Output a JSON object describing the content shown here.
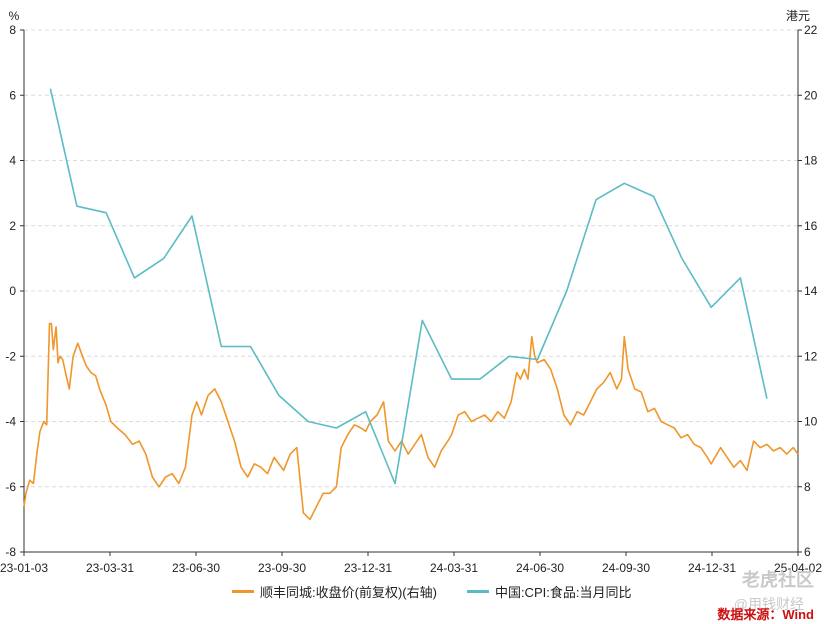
{
  "chart_data": {
    "type": "line",
    "left_axis_unit": "%",
    "right_axis_unit": "港元",
    "y_left": {
      "min": -8,
      "max": 8,
      "ticks": [
        8,
        6,
        4,
        2,
        0,
        -2,
        -4,
        -6,
        -8
      ]
    },
    "y_right": {
      "min": 6,
      "max": 22,
      "ticks": [
        22,
        20,
        18,
        16,
        14,
        12,
        10,
        8,
        6
      ]
    },
    "x_tick_labels": [
      "23-01-03",
      "23-03-31",
      "23-06-30",
      "23-09-30",
      "23-12-31",
      "24-03-31",
      "24-06-30",
      "24-09-30",
      "24-12-31",
      "25-04-02"
    ],
    "grid": "horizontal dashed",
    "legend_position": "bottom",
    "series": [
      {
        "name": "顺丰同城:收盘价(前复权)(右轴)",
        "axis": "right",
        "color": "#f0962b",
        "points": [
          [
            "2023-01-03",
            7.4
          ],
          [
            "2023-01-05",
            7.8
          ],
          [
            "2023-01-09",
            8.2
          ],
          [
            "2023-01-13",
            8.1
          ],
          [
            "2023-01-17",
            9.1
          ],
          [
            "2023-01-20",
            9.7
          ],
          [
            "2023-01-24",
            10.0
          ],
          [
            "2023-01-27",
            9.9
          ],
          [
            "2023-01-30",
            13.0
          ],
          [
            "2023-02-01",
            13.0
          ],
          [
            "2023-02-03",
            12.2
          ],
          [
            "2023-02-06",
            12.9
          ],
          [
            "2023-02-08",
            11.8
          ],
          [
            "2023-02-10",
            12.0
          ],
          [
            "2023-02-13",
            11.9
          ],
          [
            "2023-02-16",
            11.5
          ],
          [
            "2023-02-20",
            11.0
          ],
          [
            "2023-02-24",
            12.0
          ],
          [
            "2023-03-01",
            12.4
          ],
          [
            "2023-03-06",
            12.0
          ],
          [
            "2023-03-10",
            11.7
          ],
          [
            "2023-03-15",
            11.5
          ],
          [
            "2023-03-20",
            11.4
          ],
          [
            "2023-03-24",
            11.0
          ],
          [
            "2023-03-31",
            10.5
          ],
          [
            "2023-04-05",
            10.0
          ],
          [
            "2023-04-12",
            9.8
          ],
          [
            "2023-04-20",
            9.6
          ],
          [
            "2023-04-28",
            9.3
          ],
          [
            "2023-05-05",
            9.4
          ],
          [
            "2023-05-12",
            9.0
          ],
          [
            "2023-05-19",
            8.3
          ],
          [
            "2023-05-26",
            8.0
          ],
          [
            "2023-06-02",
            8.3
          ],
          [
            "2023-06-09",
            8.4
          ],
          [
            "2023-06-16",
            8.1
          ],
          [
            "2023-06-23",
            8.6
          ],
          [
            "2023-06-30",
            10.2
          ],
          [
            "2023-07-05",
            10.6
          ],
          [
            "2023-07-10",
            10.2
          ],
          [
            "2023-07-17",
            10.8
          ],
          [
            "2023-07-24",
            11.0
          ],
          [
            "2023-07-31",
            10.6
          ],
          [
            "2023-08-07",
            10.0
          ],
          [
            "2023-08-14",
            9.4
          ],
          [
            "2023-08-21",
            8.6
          ],
          [
            "2023-08-28",
            8.3
          ],
          [
            "2023-09-04",
            8.7
          ],
          [
            "2023-09-11",
            8.6
          ],
          [
            "2023-09-18",
            8.4
          ],
          [
            "2023-09-25",
            8.9
          ],
          [
            "2023-10-05",
            8.5
          ],
          [
            "2023-10-12",
            9.0
          ],
          [
            "2023-10-19",
            9.2
          ],
          [
            "2023-10-26",
            7.2
          ],
          [
            "2023-11-02",
            7.0
          ],
          [
            "2023-11-09",
            7.4
          ],
          [
            "2023-11-16",
            7.8
          ],
          [
            "2023-11-23",
            7.8
          ],
          [
            "2023-11-30",
            8.0
          ],
          [
            "2023-12-05",
            9.2
          ],
          [
            "2023-12-12",
            9.6
          ],
          [
            "2023-12-19",
            9.9
          ],
          [
            "2023-12-26",
            9.8
          ],
          [
            "2023-12-31",
            9.7
          ],
          [
            "2024-01-05",
            10.0
          ],
          [
            "2024-01-12",
            10.2
          ],
          [
            "2024-01-19",
            10.6
          ],
          [
            "2024-01-24",
            9.4
          ],
          [
            "2024-01-31",
            9.1
          ],
          [
            "2024-02-07",
            9.4
          ],
          [
            "2024-02-14",
            9.0
          ],
          [
            "2024-02-21",
            9.3
          ],
          [
            "2024-02-28",
            9.6
          ],
          [
            "2024-03-06",
            8.9
          ],
          [
            "2024-03-13",
            8.6
          ],
          [
            "2024-03-20",
            9.1
          ],
          [
            "2024-03-27",
            9.4
          ],
          [
            "2024-03-31",
            9.6
          ],
          [
            "2024-04-07",
            10.2
          ],
          [
            "2024-04-14",
            10.3
          ],
          [
            "2024-04-21",
            10.0
          ],
          [
            "2024-04-28",
            10.1
          ],
          [
            "2024-05-05",
            10.2
          ],
          [
            "2024-05-12",
            10.0
          ],
          [
            "2024-05-19",
            10.3
          ],
          [
            "2024-05-26",
            10.1
          ],
          [
            "2024-06-02",
            10.6
          ],
          [
            "2024-06-08",
            11.5
          ],
          [
            "2024-06-12",
            11.3
          ],
          [
            "2024-06-16",
            11.6
          ],
          [
            "2024-06-20",
            11.3
          ],
          [
            "2024-06-24",
            12.6
          ],
          [
            "2024-06-27",
            12.0
          ],
          [
            "2024-06-30",
            11.8
          ],
          [
            "2024-07-07",
            11.9
          ],
          [
            "2024-07-14",
            11.6
          ],
          [
            "2024-07-21",
            11.0
          ],
          [
            "2024-07-28",
            10.2
          ],
          [
            "2024-08-04",
            9.9
          ],
          [
            "2024-08-11",
            10.3
          ],
          [
            "2024-08-18",
            10.2
          ],
          [
            "2024-08-25",
            10.6
          ],
          [
            "2024-09-01",
            11.0
          ],
          [
            "2024-09-08",
            11.2
          ],
          [
            "2024-09-15",
            11.5
          ],
          [
            "2024-09-22",
            11.0
          ],
          [
            "2024-09-27",
            11.3
          ],
          [
            "2024-09-30",
            12.6
          ],
          [
            "2024-10-04",
            11.6
          ],
          [
            "2024-10-11",
            11.0
          ],
          [
            "2024-10-18",
            10.9
          ],
          [
            "2024-10-25",
            10.3
          ],
          [
            "2024-11-01",
            10.4
          ],
          [
            "2024-11-08",
            10.0
          ],
          [
            "2024-11-15",
            9.9
          ],
          [
            "2024-11-22",
            9.8
          ],
          [
            "2024-11-29",
            9.5
          ],
          [
            "2024-12-06",
            9.6
          ],
          [
            "2024-12-13",
            9.3
          ],
          [
            "2024-12-20",
            9.2
          ],
          [
            "2024-12-27",
            8.9
          ],
          [
            "2024-12-31",
            8.7
          ],
          [
            "2025-01-10",
            9.2
          ],
          [
            "2025-01-17",
            8.9
          ],
          [
            "2025-01-24",
            8.6
          ],
          [
            "2025-01-31",
            8.8
          ],
          [
            "2025-02-07",
            8.5
          ],
          [
            "2025-02-14",
            9.4
          ],
          [
            "2025-02-21",
            9.2
          ],
          [
            "2025-02-28",
            9.3
          ],
          [
            "2025-03-07",
            9.1
          ],
          [
            "2025-03-14",
            9.2
          ],
          [
            "2025-03-21",
            9.0
          ],
          [
            "2025-03-28",
            9.2
          ],
          [
            "2025-04-02",
            9.0
          ]
        ]
      },
      {
        "name": "中国:CPI:食品:当月同比",
        "axis": "left",
        "color": "#5bbcc4",
        "points": [
          [
            "2023-01-31",
            6.2
          ],
          [
            "2023-02-28",
            2.6
          ],
          [
            "2023-03-31",
            2.4
          ],
          [
            "2023-04-30",
            0.4
          ],
          [
            "2023-05-31",
            1.0
          ],
          [
            "2023-06-30",
            2.3
          ],
          [
            "2023-07-31",
            -1.7
          ],
          [
            "2023-08-31",
            -1.7
          ],
          [
            "2023-09-30",
            -3.2
          ],
          [
            "2023-10-31",
            -4.0
          ],
          [
            "2023-11-30",
            -4.2
          ],
          [
            "2023-12-31",
            -3.7
          ],
          [
            "2024-01-31",
            -5.9
          ],
          [
            "2024-02-29",
            -0.9
          ],
          [
            "2024-03-31",
            -2.7
          ],
          [
            "2024-04-30",
            -2.7
          ],
          [
            "2024-05-31",
            -2.0
          ],
          [
            "2024-06-30",
            -2.1
          ],
          [
            "2024-07-31",
            0.0
          ],
          [
            "2024-08-31",
            2.8
          ],
          [
            "2024-09-30",
            3.3
          ],
          [
            "2024-10-31",
            2.9
          ],
          [
            "2024-11-30",
            1.0
          ],
          [
            "2024-12-31",
            -0.5
          ],
          [
            "2025-01-31",
            0.4
          ],
          [
            "2025-02-28",
            -3.3
          ]
        ]
      }
    ]
  },
  "source_text": "数据来源：Wind",
  "watermark_text": "老虎社区",
  "watermark_sub": "@用钱财经"
}
